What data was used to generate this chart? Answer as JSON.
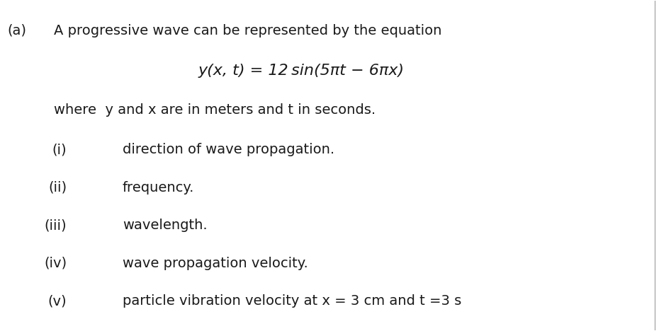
{
  "background_color": "#ffffff",
  "fig_width": 9.3,
  "fig_height": 4.68,
  "dpi": 100,
  "label_a": "(a)",
  "line1": "A progressive wave can be represented by the equation",
  "equation": "y(x, t) = 12 sin(5πt − 6πx)",
  "line3": "where  y and x are in meters and t in seconds.",
  "items": [
    {
      "num": "(i)",
      "text": "direction of wave propagation."
    },
    {
      "num": "(ii)",
      "text": "frequency."
    },
    {
      "num": "(iii)",
      "text": "wavelength."
    },
    {
      "num": "(iv)",
      "text": "wave propagation velocity."
    },
    {
      "num": "(v)",
      "text": "particle vibration velocity at x = 3 cm and t =3 s"
    }
  ],
  "font_size_main": 14,
  "font_size_eq": 16,
  "font_color": "#1a1a1a",
  "font_family": "DejaVu Sans"
}
